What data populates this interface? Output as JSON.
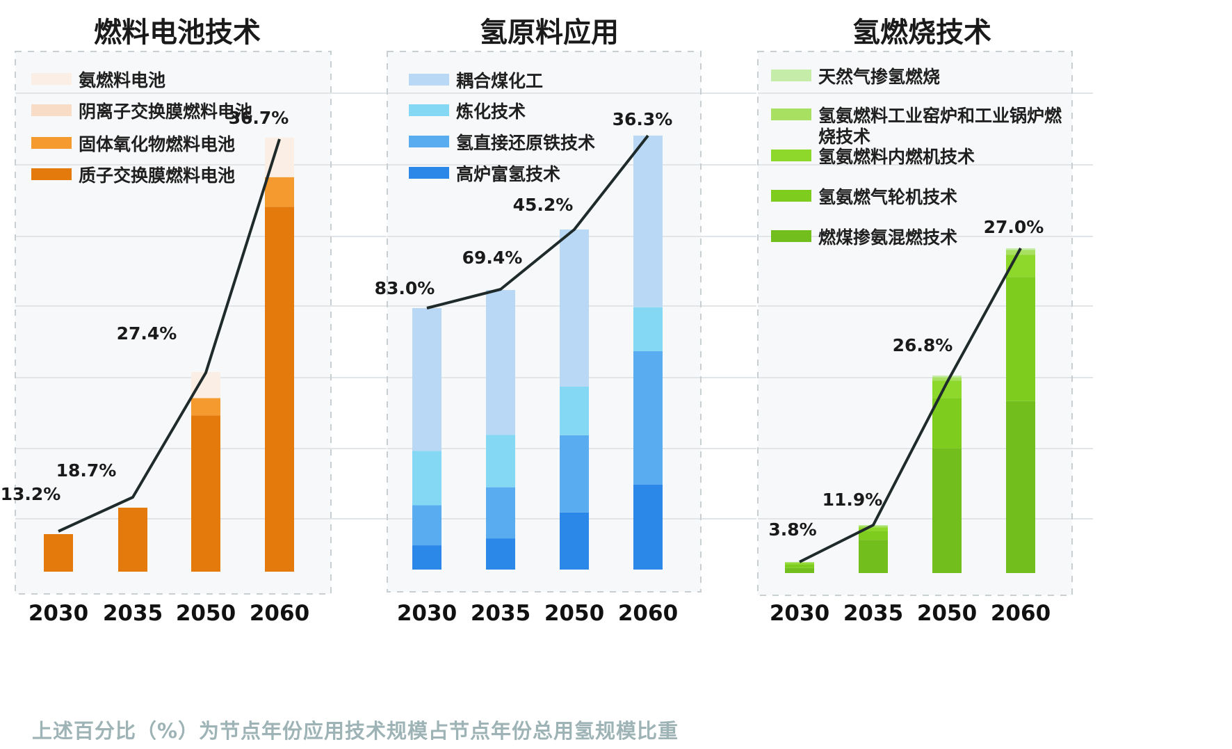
{
  "footnote": "上述百分比（%）为节点年份应用技术规模占节点年份总用氢规模比重",
  "chart_data": [
    {
      "type": "bar",
      "stacked": true,
      "title": "燃料电池技术",
      "xlabel": "",
      "ylabel": "",
      "categories": [
        "2030",
        "2035",
        "2050",
        "2060"
      ],
      "series": [
        {
          "name": "质子交换膜燃料电池",
          "color": "#e57a0c",
          "values": [
            13.2,
            18.7,
            54.0,
            129.5
          ]
        },
        {
          "name": "固体氧化物燃料电池",
          "color": "#f59a2e",
          "values": [
            0,
            0,
            6.0,
            10.5
          ]
        },
        {
          "name": "阴离子交换膜燃料电池",
          "color": "#f9dcc6",
          "values": [
            0,
            0,
            0,
            0
          ]
        },
        {
          "name": "氨燃料电池",
          "color": "#fbeee4",
          "values": [
            0,
            0,
            9.0,
            14.0
          ]
        }
      ],
      "line": {
        "name": "占比",
        "color": "#1f2a2a",
        "values": [
          13.2,
          18.7,
          27.4,
          36.7
        ],
        "labels": [
          "13.2%",
          "18.7%",
          "27.4%",
          "36.7%"
        ]
      },
      "legend": "top-left",
      "grid": true
    },
    {
      "type": "bar",
      "stacked": true,
      "title": "氢原料应用",
      "xlabel": "",
      "ylabel": "",
      "categories": [
        "2030",
        "2035",
        "2050",
        "2060"
      ],
      "series": [
        {
          "name": "高炉富氢技术",
          "color": "#2b87e8",
          "values": [
            8.5,
            11.0,
            20.0,
            30.0
          ]
        },
        {
          "name": "氢直接还原铁技术",
          "color": "#5aacf0",
          "values": [
            14.0,
            18.0,
            27.0,
            47.0
          ]
        },
        {
          "name": "炼化技术",
          "color": "#84d8f4",
          "values": [
            19.0,
            18.5,
            17.0,
            15.5
          ]
        },
        {
          "name": "耦合煤化工",
          "color": "#b9d8f5",
          "values": [
            50.0,
            51.0,
            55.0,
            60.5
          ]
        }
      ],
      "line": {
        "name": "占比",
        "color": "#1f2a2a",
        "values": [
          83.0,
          69.4,
          45.2,
          36.3
        ],
        "labels": [
          "83.0%",
          "69.4%",
          "45.2%",
          "36.3%"
        ]
      },
      "legend": "top-left",
      "grid": true
    },
    {
      "type": "bar",
      "stacked": true,
      "title": "氢燃烧技术",
      "xlabel": "",
      "ylabel": "",
      "categories": [
        "2030",
        "2035",
        "2050",
        "2060"
      ],
      "series": [
        {
          "name": "燃煤掺氨混燃技术",
          "color": "#72be1c",
          "values": [
            2.0,
            9.5,
            36.0,
            54.0
          ]
        },
        {
          "name": "氢氨燃气轮机技术",
          "color": "#7dcc1e",
          "values": [
            1.5,
            2.5,
            14.5,
            39.0
          ]
        },
        {
          "name": "氢氨燃料内燃机技术",
          "color": "#8ed82c",
          "values": [
            0.5,
            1.0,
            5.0,
            7.0
          ]
        },
        {
          "name": "氢氨燃料工业窑炉和工业锅炉燃烧技术",
          "color": "#a8e062",
          "values": [
            0.3,
            0.5,
            1.0,
            1.5
          ]
        },
        {
          "name": "天然气掺氢燃烧",
          "color": "#c6ecaa",
          "values": [
            0.1,
            0.2,
            0.5,
            0.5
          ]
        }
      ],
      "line": {
        "name": "占比",
        "color": "#1f2a2a",
        "values": [
          3.8,
          11.9,
          26.8,
          27.0
        ],
        "labels": [
          "3.8%",
          "11.9%",
          "26.8%",
          "27.0%"
        ]
      },
      "legend": "top-left",
      "grid": true
    }
  ]
}
